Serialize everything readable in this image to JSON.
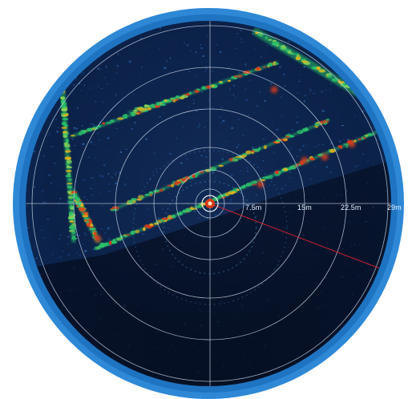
{
  "sonar": {
    "range_labels": [
      "7.5m",
      "15m",
      "22.5m",
      "29m"
    ],
    "colors": {
      "bezel": "#2e88d6",
      "bezel_dark": "#1a6bb5",
      "background": "#0a1d3f",
      "grid": "#d7e3f2",
      "heading_line": "#cc2230",
      "return_hot": "#d83a1a",
      "return_warm": "#e0b41f",
      "return_cool": "#2bc06a"
    }
  }
}
